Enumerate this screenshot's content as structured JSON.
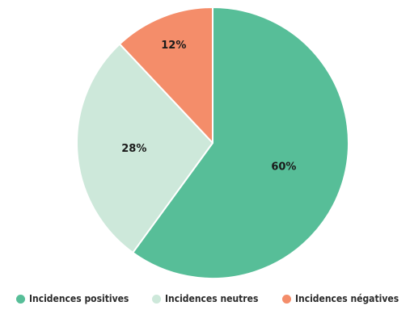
{
  "chart_data": {
    "type": "pie",
    "title": "",
    "categories": [
      "Incidences positives",
      "Incidences neutres",
      "Incidences  négatives"
    ],
    "values": [
      60,
      28,
      12
    ],
    "labels": [
      "60%",
      "28%",
      "12%"
    ],
    "colors": [
      "#57be98",
      "#cde8da",
      "#f48d6a"
    ],
    "legend_position": "bottom"
  }
}
